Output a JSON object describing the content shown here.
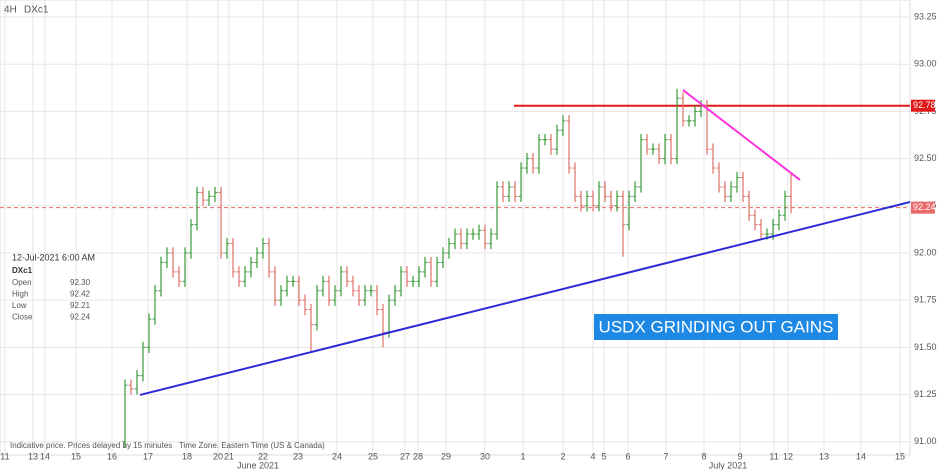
{
  "chart_data": {
    "type": "ohlc",
    "timeframe": "4H",
    "symbol": "DXc1",
    "annotation": "USDX GRINDING OUT GAINS",
    "footer": "Indicative price. Prices delayed by 15 minutes   Time Zone: Eastern Time (US & Canada)",
    "info": {
      "datetime": "12-Jul-2021 6:00 AM",
      "symbol": "DXc1",
      "rows": [
        [
          "Open",
          "92.30"
        ],
        [
          "High",
          "92.42"
        ],
        [
          "Low",
          "92.21"
        ],
        [
          "Close",
          "92.24"
        ]
      ]
    },
    "up_color": "#3a9a3a",
    "down_color": "#e0706a",
    "open": [
      91.0,
      91.3,
      91.28,
      91.35,
      91.5,
      91.65,
      91.8,
      91.95,
      92.0,
      91.9,
      91.85,
      92.0,
      92.15,
      92.32,
      92.28,
      92.3,
      92.32,
      92.0,
      92.05,
      91.9,
      91.85,
      91.9,
      91.95,
      92.0,
      92.05,
      91.9,
      91.75,
      91.8,
      91.85,
      91.85,
      91.75,
      91.7,
      91.62,
      91.8,
      91.85,
      91.75,
      91.8,
      91.9,
      91.85,
      91.8,
      91.75,
      91.8,
      91.8,
      91.7,
      91.58,
      91.75,
      91.8,
      91.9,
      91.85,
      91.85,
      91.9,
      91.95,
      91.85,
      91.95,
      92.0,
      92.05,
      92.1,
      92.05,
      92.1,
      92.1,
      92.12,
      92.05,
      92.1,
      92.35,
      92.3,
      92.35,
      92.3,
      92.45,
      92.5,
      92.45,
      92.6,
      92.6,
      92.55,
      92.65,
      92.7,
      92.45,
      92.3,
      92.25,
      92.3,
      92.25,
      92.35,
      92.3,
      92.25,
      92.3,
      92.15,
      92.3,
      92.35,
      92.6,
      92.55,
      92.55,
      92.5,
      92.6,
      92.5,
      92.82,
      92.7,
      92.7,
      92.75,
      92.78,
      92.55,
      92.45,
      92.35,
      92.3,
      92.35,
      92.4,
      92.3,
      92.2,
      92.15,
      92.1,
      92.1,
      92.15,
      92.2,
      92.3
    ],
    "high": [
      91.33,
      91.33,
      91.38,
      91.53,
      91.68,
      91.83,
      91.98,
      92.03,
      92.03,
      91.93,
      92.03,
      92.18,
      92.35,
      92.35,
      92.33,
      92.35,
      92.35,
      92.08,
      92.08,
      91.93,
      91.93,
      91.98,
      92.03,
      92.08,
      92.08,
      91.93,
      91.83,
      91.88,
      91.88,
      91.88,
      91.78,
      91.73,
      91.83,
      91.88,
      91.88,
      91.83,
      91.93,
      91.93,
      91.88,
      91.83,
      91.83,
      91.83,
      91.83,
      91.73,
      91.78,
      91.83,
      91.93,
      91.93,
      91.88,
      91.93,
      91.98,
      91.98,
      91.98,
      92.03,
      92.08,
      92.13,
      92.13,
      92.13,
      92.13,
      92.15,
      92.15,
      92.13,
      92.38,
      92.38,
      92.38,
      92.38,
      92.48,
      92.53,
      92.53,
      92.63,
      92.63,
      92.63,
      92.68,
      92.73,
      92.73,
      92.48,
      92.33,
      92.33,
      92.33,
      92.38,
      92.38,
      92.33,
      92.33,
      92.33,
      92.33,
      92.38,
      92.63,
      92.63,
      92.58,
      92.58,
      92.63,
      92.63,
      92.87,
      92.85,
      92.73,
      92.78,
      92.81,
      92.81,
      92.58,
      92.48,
      92.38,
      92.38,
      92.43,
      92.43,
      92.33,
      92.23,
      92.18,
      92.13,
      92.18,
      92.23,
      92.33,
      92.42
    ],
    "low": [
      90.97,
      91.25,
      91.25,
      91.32,
      91.47,
      91.62,
      91.77,
      91.92,
      91.87,
      91.82,
      91.82,
      91.97,
      92.12,
      92.25,
      92.25,
      92.27,
      91.97,
      91.97,
      91.87,
      91.82,
      91.82,
      91.87,
      91.92,
      91.97,
      91.87,
      91.72,
      91.72,
      91.77,
      91.82,
      91.72,
      91.67,
      91.48,
      91.59,
      91.77,
      91.72,
      91.72,
      91.77,
      91.82,
      91.77,
      91.72,
      91.72,
      91.77,
      91.67,
      91.5,
      91.55,
      91.72,
      91.77,
      91.82,
      91.82,
      91.82,
      91.87,
      91.82,
      91.82,
      91.92,
      91.97,
      92.02,
      92.02,
      92.02,
      92.07,
      92.07,
      92.02,
      92.02,
      92.07,
      92.27,
      92.27,
      92.27,
      92.27,
      92.42,
      92.42,
      92.42,
      92.57,
      92.52,
      92.52,
      92.62,
      92.42,
      92.27,
      92.22,
      92.22,
      92.22,
      92.22,
      92.27,
      92.22,
      92.22,
      91.98,
      92.12,
      92.27,
      92.32,
      92.52,
      92.52,
      92.47,
      92.47,
      92.47,
      92.47,
      92.67,
      92.67,
      92.67,
      92.72,
      92.52,
      92.42,
      92.32,
      92.27,
      92.27,
      92.32,
      92.27,
      92.17,
      92.12,
      92.07,
      92.07,
      92.07,
      92.12,
      92.17,
      92.21
    ],
    "close": [
      91.3,
      91.28,
      91.35,
      91.5,
      91.65,
      91.8,
      91.95,
      92.0,
      91.9,
      91.85,
      92.0,
      92.15,
      92.32,
      92.28,
      92.3,
      92.32,
      92.0,
      92.05,
      91.9,
      91.85,
      91.9,
      91.95,
      92.0,
      92.05,
      91.9,
      91.75,
      91.8,
      91.85,
      91.85,
      91.75,
      91.7,
      91.62,
      91.8,
      91.85,
      91.75,
      91.8,
      91.9,
      91.85,
      91.8,
      91.75,
      91.8,
      91.8,
      91.7,
      91.58,
      91.75,
      91.8,
      91.9,
      91.85,
      91.85,
      91.9,
      91.95,
      91.85,
      91.95,
      92.0,
      92.05,
      92.1,
      92.05,
      92.1,
      92.1,
      92.12,
      92.05,
      92.1,
      92.35,
      92.3,
      92.35,
      92.3,
      92.45,
      92.5,
      92.45,
      92.6,
      92.6,
      92.55,
      92.65,
      92.7,
      92.45,
      92.3,
      92.25,
      92.3,
      92.25,
      92.35,
      92.3,
      92.25,
      92.3,
      92.15,
      92.3,
      92.35,
      92.6,
      92.55,
      92.55,
      92.5,
      92.6,
      92.5,
      92.82,
      92.7,
      92.7,
      92.75,
      92.78,
      92.55,
      92.45,
      92.35,
      92.3,
      92.35,
      92.4,
      92.3,
      92.2,
      92.15,
      92.1,
      92.1,
      92.15,
      92.2,
      92.3,
      92.24
    ],
    "ylim": [
      90.93,
      93.34
    ],
    "yticks": [
      {
        "value": 91.0,
        "label": "91.00"
      },
      {
        "value": 91.25,
        "label": "91.25"
      },
      {
        "value": 91.5,
        "label": "91.50"
      },
      {
        "value": 91.75,
        "label": "91.75"
      },
      {
        "value": 92.0,
        "label": "92.00"
      },
      {
        "value": 92.25,
        "label": "92.25"
      },
      {
        "value": 92.5,
        "label": "92.50"
      },
      {
        "value": 92.75,
        "label": "92.75"
      },
      {
        "value": 93.0,
        "label": "93.00"
      },
      {
        "value": 93.25,
        "label": "93.25"
      }
    ],
    "xlim": [
      -20.83,
      130.83
    ],
    "xticks": [
      {
        "value": -20,
        "label": "11"
      },
      {
        "value": -15.33,
        "label": "13"
      },
      {
        "value": -13.33,
        "label": "14"
      },
      {
        "value": -8.17,
        "label": "15"
      },
      {
        "value": -2.17,
        "label": "16"
      },
      {
        "value": 3.83,
        "label": "17"
      },
      {
        "value": 10.33,
        "label": "18"
      },
      {
        "value": 15.5,
        "label": "20"
      },
      {
        "value": 17.33,
        "label": "21"
      },
      {
        "value": 23,
        "label": "22"
      },
      {
        "value": 28.83,
        "label": "23"
      },
      {
        "value": 35.33,
        "label": "24"
      },
      {
        "value": 41.33,
        "label": "25"
      },
      {
        "value": 46.67,
        "label": "27"
      },
      {
        "value": 48.83,
        "label": "28"
      },
      {
        "value": 53.5,
        "label": "29"
      },
      {
        "value": 60,
        "label": "30"
      },
      {
        "value": 66.33,
        "label": "1"
      },
      {
        "value": 73,
        "label": "2"
      },
      {
        "value": 78,
        "label": "4"
      },
      {
        "value": 79.83,
        "label": "5"
      },
      {
        "value": 83.83,
        "label": "6"
      },
      {
        "value": 90.17,
        "label": "7"
      },
      {
        "value": 96.5,
        "label": "8"
      },
      {
        "value": 102.5,
        "label": "9"
      },
      {
        "value": 108.17,
        "label": "11"
      },
      {
        "value": 110.5,
        "label": "12"
      },
      {
        "value": 116.5,
        "label": "13"
      },
      {
        "value": 122.67,
        "label": "14"
      },
      {
        "value": 129.17,
        "label": "15"
      }
    ],
    "month_labels": [
      {
        "value": 22.17,
        "label": "June 2021"
      },
      {
        "value": 100.5,
        "label": "July 2021"
      }
    ],
    "hlines": [
      {
        "value": 92.24,
        "label": "92.24",
        "color": "#e86a6a",
        "dashed": true,
        "from": -20.83
      },
      {
        "value": 92.78,
        "label": "92.78",
        "color": "#e01818",
        "dashed": false,
        "from": 64.83
      }
    ],
    "trendlines": [
      {
        "x": [
          2.5,
          130.83
        ],
        "y": [
          91.248,
          92.27
        ],
        "color": "#2b2bd8"
      },
      {
        "x": [
          93,
          112.5
        ],
        "y": [
          92.863,
          92.387
        ],
        "color": "#ff33dd"
      }
    ],
    "grid": true
  }
}
